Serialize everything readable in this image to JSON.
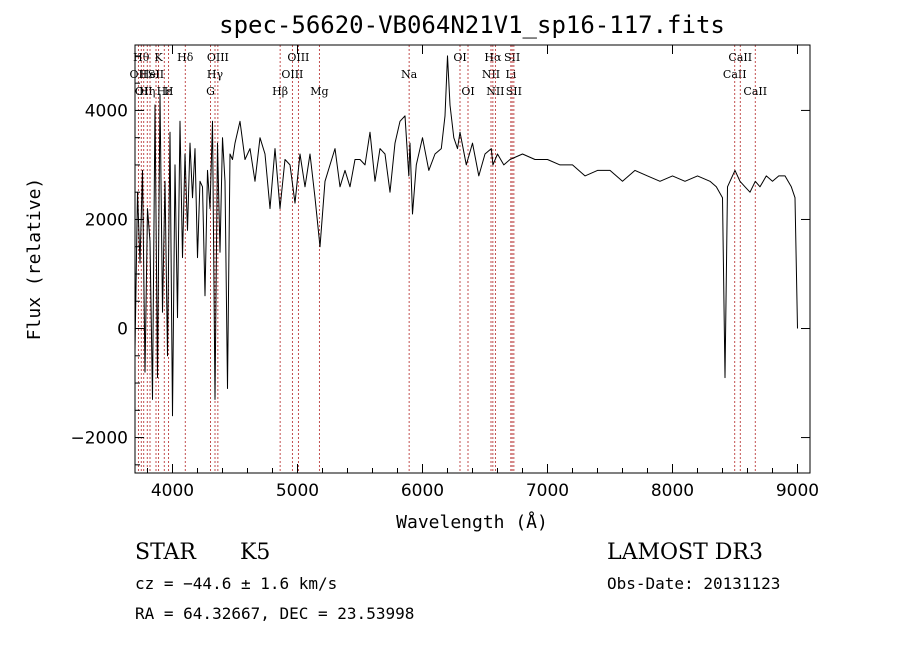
{
  "chart_data": {
    "type": "line",
    "title": "spec-56620-VB064N21V1_sp16-117.fits",
    "xlabel": "Wavelength (Å)",
    "ylabel": "Flux (relative)",
    "xlim": [
      3700,
      9100
    ],
    "ylim": [
      -2650,
      5200
    ],
    "x_ticks": [
      4000,
      5000,
      6000,
      7000,
      8000,
      9000
    ],
    "x_tick_labels": [
      "4000",
      "5000",
      "6000",
      "7000",
      "8000",
      "9000"
    ],
    "y_ticks": [
      -2000,
      0,
      2000,
      4000
    ],
    "y_tick_labels": [
      "−2000",
      "0",
      "2000",
      "4000"
    ],
    "grid": false,
    "series": [
      {
        "name": "flux",
        "color": "#000000",
        "x": [
          3700,
          3720,
          3740,
          3760,
          3780,
          3800,
          3820,
          3840,
          3860,
          3880,
          3900,
          3920,
          3940,
          3960,
          3980,
          4000,
          4020,
          4040,
          4060,
          4080,
          4100,
          4120,
          4140,
          4160,
          4180,
          4200,
          4220,
          4240,
          4260,
          4280,
          4300,
          4320,
          4340,
          4360,
          4380,
          4400,
          4420,
          4440,
          4460,
          4480,
          4500,
          4540,
          4580,
          4620,
          4660,
          4700,
          4740,
          4780,
          4820,
          4860,
          4900,
          4940,
          4980,
          5020,
          5060,
          5100,
          5140,
          5180,
          5220,
          5260,
          5300,
          5340,
          5380,
          5420,
          5460,
          5500,
          5540,
          5580,
          5620,
          5660,
          5700,
          5740,
          5780,
          5820,
          5860,
          5890,
          5900,
          5920,
          5950,
          6000,
          6050,
          6100,
          6150,
          6180,
          6200,
          6220,
          6250,
          6280,
          6300,
          6350,
          6400,
          6450,
          6500,
          6550,
          6563,
          6600,
          6650,
          6700,
          6800,
          6900,
          7000,
          7100,
          7200,
          7300,
          7400,
          7500,
          7600,
          7700,
          7800,
          7900,
          8000,
          8100,
          8200,
          8300,
          8350,
          8400,
          8420,
          8440,
          8460,
          8500,
          8540,
          8580,
          8620,
          8662,
          8700,
          8750,
          8800,
          8850,
          8900,
          8950,
          8980,
          9000
        ],
        "y": [
          -400,
          2500,
          1200,
          2900,
          -800,
          2200,
          1600,
          -1300,
          4100,
          -900,
          4300,
          300,
          2700,
          -500,
          3600,
          -1600,
          3000,
          200,
          3800,
          1300,
          3200,
          1800,
          3400,
          2400,
          3300,
          1300,
          2700,
          2600,
          600,
          2900,
          2200,
          3800,
          -1300,
          3400,
          1400,
          3500,
          2700,
          -1100,
          3200,
          3100,
          3400,
          3800,
          3100,
          3300,
          2700,
          3500,
          3200,
          2200,
          3300,
          2200,
          3100,
          3000,
          2300,
          3200,
          2600,
          3200,
          2400,
          1500,
          2700,
          3000,
          3300,
          2600,
          2900,
          2600,
          3100,
          3100,
          3000,
          3600,
          2700,
          3300,
          3200,
          2500,
          3400,
          3800,
          3900,
          2800,
          3400,
          2100,
          3000,
          3500,
          2900,
          3200,
          3300,
          3900,
          5000,
          4100,
          3500,
          3300,
          3600,
          3000,
          3400,
          2800,
          3200,
          3300,
          3000,
          3200,
          3000,
          3100,
          3200,
          3100,
          3100,
          3000,
          3000,
          2800,
          2900,
          2900,
          2700,
          2900,
          2800,
          2700,
          2800,
          2700,
          2800,
          2700,
          2600,
          2400,
          -900,
          2600,
          2700,
          2900,
          2700,
          2600,
          2500,
          2700,
          2600,
          2800,
          2700,
          2800,
          2800,
          2600,
          2400,
          0
        ]
      }
    ],
    "line_markers": [
      {
        "wl": 3727,
        "label": "OII",
        "row": 2
      },
      {
        "wl": 3750,
        "label": "Hθ",
        "row": 1
      },
      {
        "wl": 3770,
        "label": "OII",
        "row": 3
      },
      {
        "wl": 3798,
        "label": "Hη",
        "row": 3
      },
      {
        "wl": 3820,
        "label": "HeI",
        "row": 2
      },
      {
        "wl": 3868,
        "label": "SII",
        "row": 2
      },
      {
        "wl": 3889,
        "label": "K",
        "row": 1
      },
      {
        "wl": 3934,
        "label": "Hε",
        "row": 3
      },
      {
        "wl": 3969,
        "label": "H",
        "row": 3
      },
      {
        "wl": 4102,
        "label": "Hδ",
        "row": 1
      },
      {
        "wl": 4304,
        "label": "G",
        "row": 3
      },
      {
        "wl": 4340,
        "label": "Hγ",
        "row": 2
      },
      {
        "wl": 4363,
        "label": "OIII",
        "row": 1
      },
      {
        "wl": 4861,
        "label": "Hβ",
        "row": 3
      },
      {
        "wl": 4959,
        "label": "OIII",
        "row": 2
      },
      {
        "wl": 5007,
        "label": "OIII",
        "row": 1
      },
      {
        "wl": 5175,
        "label": "Mg",
        "row": 3
      },
      {
        "wl": 5893,
        "label": "Na",
        "row": 2
      },
      {
        "wl": 6300,
        "label": "OI",
        "row": 1
      },
      {
        "wl": 6364,
        "label": "OI",
        "row": 3
      },
      {
        "wl": 6548,
        "label": "NII",
        "row": 2
      },
      {
        "wl": 6563,
        "label": "Hα",
        "row": 1
      },
      {
        "wl": 6583,
        "label": "NII",
        "row": 3
      },
      {
        "wl": 6707,
        "label": "Li",
        "row": 2
      },
      {
        "wl": 6717,
        "label": "SII",
        "row": 1
      },
      {
        "wl": 6731,
        "label": "SII",
        "row": 3
      },
      {
        "wl": 8498,
        "label": "CaII",
        "row": 2
      },
      {
        "wl": 8542,
        "label": "CaII",
        "row": 1
      },
      {
        "wl": 8662,
        "label": "CaII",
        "row": 3
      }
    ],
    "marker_color": "#b22222"
  },
  "info": {
    "class_label": "STAR",
    "subclass": "K5",
    "survey": "LAMOST DR3",
    "cz": "cz = −44.6 ± 1.6 km/s",
    "obs_date": "Obs-Date: 20131123",
    "coords": "RA =  64.32667, DEC =  23.53998"
  }
}
